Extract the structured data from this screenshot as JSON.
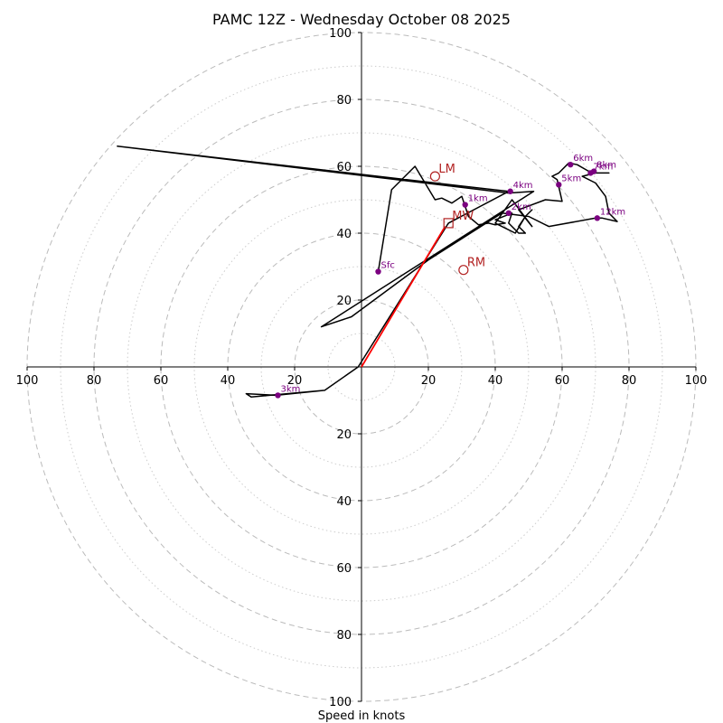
{
  "chart_data": {
    "type": "hodograph",
    "title": "PAMC 12Z - Wednesday October 08 2025",
    "xlabel": "Speed in knots",
    "xlim": [
      -100,
      100
    ],
    "ylim": [
      -100,
      100
    ],
    "rings_major": [
      20,
      40,
      60,
      80,
      100
    ],
    "rings_minor": [
      10,
      30,
      50,
      70,
      90
    ],
    "x_tick_labels": [
      "100",
      "80",
      "60",
      "40",
      "20",
      "20",
      "40",
      "60",
      "80",
      "100"
    ],
    "x_tick_values": [
      -100,
      -80,
      -60,
      -40,
      -20,
      20,
      40,
      60,
      80,
      100
    ],
    "y_tick_labels": [
      "100",
      "80",
      "60",
      "40",
      "20",
      "20",
      "40",
      "60",
      "80",
      "100"
    ],
    "y_tick_values": [
      100,
      80,
      60,
      40,
      20,
      -20,
      -40,
      -60,
      -80,
      -100
    ],
    "hodograph_trace": {
      "name": "wind profile",
      "color": "#000000",
      "points": [
        [
          5,
          28.5
        ],
        [
          9,
          53
        ],
        [
          16,
          60
        ],
        [
          22,
          50
        ],
        [
          24,
          50.5
        ],
        [
          27,
          49
        ],
        [
          30,
          51
        ],
        [
          31,
          48
        ],
        [
          32,
          45
        ],
        [
          35,
          42.5
        ],
        [
          38,
          43
        ],
        [
          40,
          42.5
        ],
        [
          43,
          43
        ],
        [
          40,
          44
        ],
        [
          45,
          46
        ],
        [
          44,
          43
        ],
        [
          47,
          40
        ],
        [
          49,
          40
        ],
        [
          47,
          42
        ],
        [
          49,
          45
        ],
        [
          51,
          47
        ],
        [
          49,
          45
        ],
        [
          46,
          40
        ],
        [
          40,
          43
        ],
        [
          45,
          50
        ],
        [
          48,
          46
        ],
        [
          51,
          42
        ],
        [
          47,
          47
        ],
        [
          55,
          50
        ],
        [
          60,
          49.5
        ],
        [
          58.5,
          56
        ],
        [
          57,
          57
        ],
        [
          59,
          58
        ],
        [
          62,
          61
        ],
        [
          64.5,
          60.5
        ],
        [
          68,
          58.5
        ],
        [
          70,
          58
        ],
        [
          74,
          58
        ],
        [
          70,
          58
        ],
        [
          66,
          57
        ],
        [
          70,
          55
        ],
        [
          73,
          51
        ],
        [
          74,
          46
        ],
        [
          76.5,
          43.5
        ],
        [
          72,
          44.5
        ],
        [
          70,
          44.5
        ],
        [
          56,
          42
        ],
        [
          50,
          45
        ],
        [
          42,
          46
        ],
        [
          20,
          32
        ],
        [
          -3,
          15
        ],
        [
          -12,
          12
        ],
        [
          51.5,
          52.5
        ],
        [
          44,
          52
        ],
        [
          -73,
          66
        ],
        [
          44,
          52.5
        ],
        [
          26,
          43
        ],
        [
          -1,
          0
        ],
        [
          -11,
          -7
        ],
        [
          -33,
          -9
        ],
        [
          -34.5,
          -8
        ],
        [
          -25.5,
          -8.5
        ],
        [
          -11,
          -7
        ]
      ]
    },
    "height_markers": [
      {
        "label": "Sfc",
        "u": 5,
        "v": 28.5
      },
      {
        "label": "1km",
        "u": 31,
        "v": 48.5
      },
      {
        "label": "2km",
        "u": 44,
        "v": 46
      },
      {
        "label": "3km",
        "u": -25,
        "v": -8.5
      },
      {
        "label": "4km",
        "u": 44.5,
        "v": 52.5
      },
      {
        "label": "5km",
        "u": 59,
        "v": 54.5
      },
      {
        "label": "6km",
        "u": 62.5,
        "v": 60.5
      },
      {
        "label": "7km",
        "u": 68.5,
        "v": 58
      },
      {
        "label": "8km",
        "u": 69.5,
        "v": 58.5
      },
      {
        "label": "12km",
        "u": 70.5,
        "v": 44.5
      }
    ],
    "storm_motions": [
      {
        "label": "LM",
        "u": 22,
        "v": 57,
        "marker": "circle"
      },
      {
        "label": "MW",
        "u": 26,
        "v": 43,
        "marker": "square"
      },
      {
        "label": "RM",
        "u": 30.5,
        "v": 29,
        "marker": "circle"
      }
    ],
    "mean_wind_vector": {
      "from": [
        0,
        0
      ],
      "to": [
        25,
        42
      ]
    },
    "colors": {
      "trace": "#000000",
      "marker": "#7b0080",
      "storm": "#b22222",
      "vector": "#ff0000",
      "grid": "#bbbbbb"
    }
  }
}
